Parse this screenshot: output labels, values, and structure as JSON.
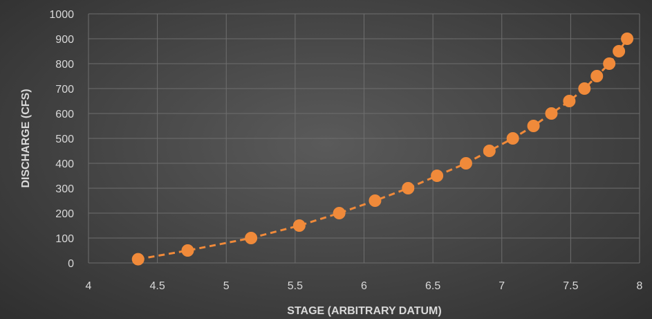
{
  "chart_data": {
    "type": "scatter",
    "title": "",
    "xlabel": "STAGE (ARBITRARY DATUM)",
    "ylabel": "DISCHARGE (CFS)",
    "xlim": [
      4,
      8
    ],
    "ylim": [
      0,
      1000
    ],
    "x_ticks": [
      "4",
      "4.5",
      "5",
      "5.5",
      "6",
      "6.5",
      "7",
      "7.5",
      "8"
    ],
    "y_ticks": [
      "0",
      "100",
      "200",
      "300",
      "400",
      "500",
      "600",
      "700",
      "800",
      "900",
      "1000"
    ],
    "grid": true,
    "legend": "none",
    "line_style": "dashed, with markers",
    "color": "#f08a3a",
    "series": [
      {
        "x": [
          4.36,
          4.72,
          5.18,
          5.53,
          5.82,
          6.08,
          6.32,
          6.53,
          6.74,
          6.91,
          7.08,
          7.23,
          7.36,
          7.49,
          7.6,
          7.69,
          7.78,
          7.85,
          7.91
        ],
        "y": [
          15,
          50,
          100,
          150,
          200,
          250,
          300,
          350,
          400,
          450,
          500,
          550,
          600,
          650,
          700,
          750,
          800,
          850,
          900
        ]
      }
    ]
  }
}
